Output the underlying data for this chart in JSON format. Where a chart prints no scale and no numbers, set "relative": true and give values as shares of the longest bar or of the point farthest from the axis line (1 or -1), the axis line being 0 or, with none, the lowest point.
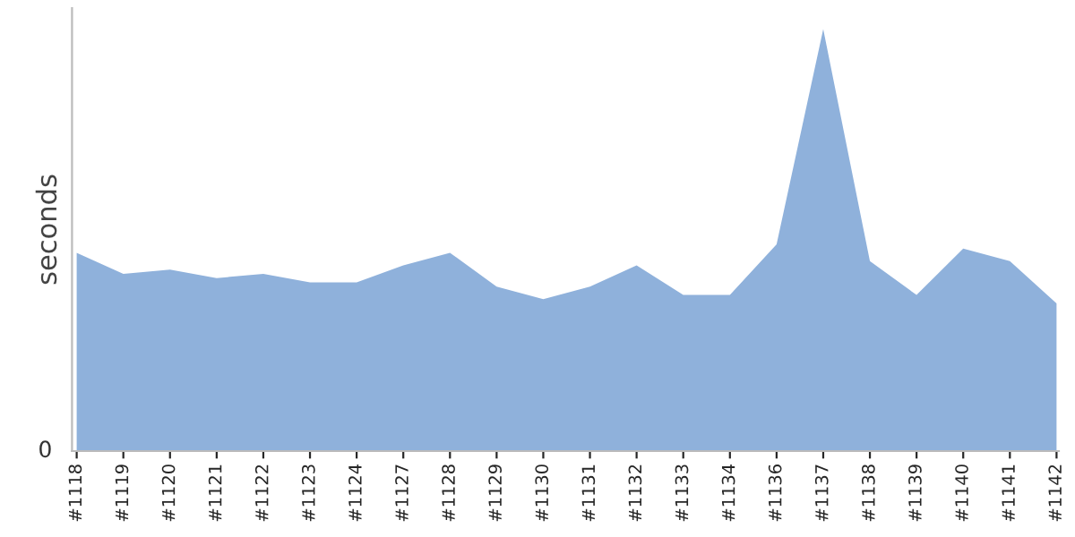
{
  "chart_data": {
    "type": "area",
    "relative": true,
    "ylabel": "seconds",
    "annotations": [
      "0"
    ],
    "categories": [
      "#1118",
      "#1119",
      "#1120",
      "#1121",
      "#1122",
      "#1123",
      "#1124",
      "#1127",
      "#1128",
      "#1129",
      "#1130",
      "#1131",
      "#1132",
      "#1133",
      "#1134",
      "#1136",
      "#1137",
      "#1138",
      "#1139",
      "#1140",
      "#1141",
      "#1142"
    ],
    "series": [
      {
        "color": "#8fb1db",
        "values": [
          0.47,
          0.42,
          0.43,
          0.41,
          0.42,
          0.4,
          0.4,
          0.44,
          0.47,
          0.39,
          0.36,
          0.39,
          0.44,
          0.37,
          0.37,
          0.49,
          1,
          0.45,
          0.37,
          0.48,
          0.45,
          0.35
        ]
      }
    ],
    "grid": false,
    "legend": false
  }
}
